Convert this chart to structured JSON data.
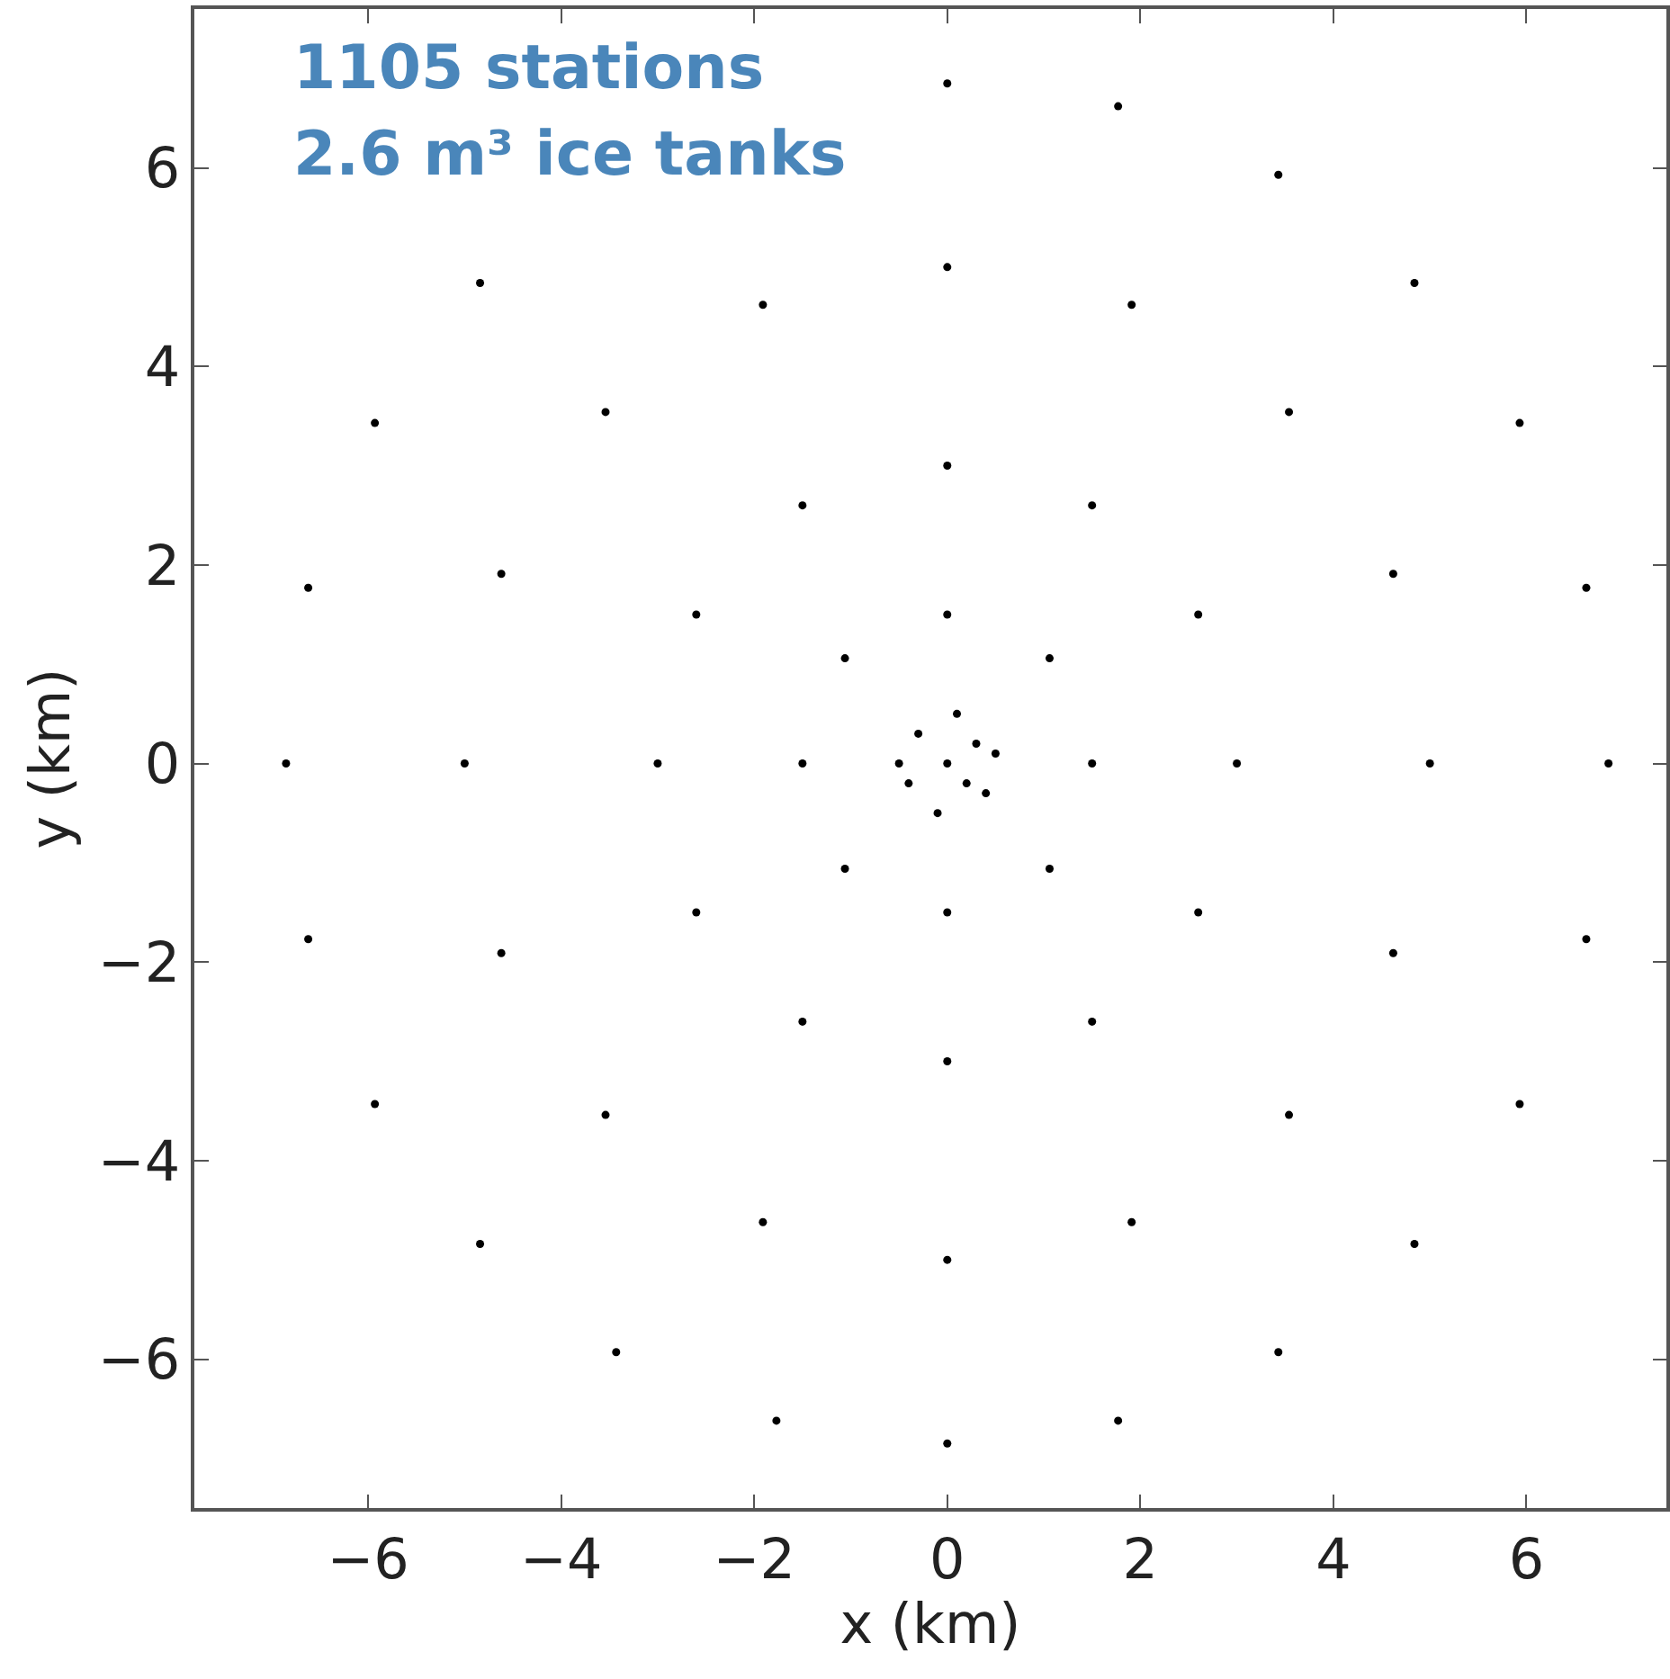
{
  "chart_data": {
    "type": "scatter",
    "xlabel": "x (km)",
    "ylabel": "y (km)",
    "annotations": [
      "1105 stations",
      "2.6 m³ ice tanks"
    ],
    "xlim": [
      -7.8,
      7.45
    ],
    "ylim": [
      -7.5,
      7.6
    ],
    "xticks": [
      -6,
      -4,
      -2,
      0,
      2,
      4,
      6
    ],
    "yticks": [
      -6,
      -4,
      -2,
      0,
      2,
      4,
      6
    ],
    "marker": "circle",
    "series": [
      {
        "color": "#000000",
        "x": [
          6.85,
          6.62,
          5.93,
          4.84,
          3.43,
          1.77,
          0,
          -4.84,
          -5.93,
          -6.62,
          -6.85,
          -6.62,
          -5.93,
          -4.84,
          -3.43,
          -1.77,
          0,
          1.77,
          3.43,
          4.84,
          5.93,
          6.62,
          5,
          4.62,
          3.54,
          1.91,
          0,
          -1.91,
          -3.54,
          -4.62,
          -5,
          -4.62,
          -3.54,
          -1.91,
          0,
          1.91,
          3.54,
          4.62,
          3,
          2.6,
          1.5,
          0,
          -1.5,
          -2.6,
          -3,
          -2.6,
          -1.5,
          0,
          1.5,
          2.6,
          1.5,
          1.06,
          0,
          -1.06,
          -1.5,
          -1.06,
          0,
          1.06,
          0,
          0.3,
          -0.3,
          0.4,
          -0.4,
          0.1,
          -0.1,
          0.5,
          -0.5,
          0.2
        ],
        "values": [
          0,
          1.77,
          3.43,
          4.84,
          5.93,
          6.62,
          6.85,
          4.84,
          3.43,
          1.77,
          0,
          -1.77,
          -3.43,
          -4.84,
          -5.93,
          -6.62,
          -6.85,
          -6.62,
          -5.93,
          -4.84,
          -3.43,
          -1.77,
          0,
          1.91,
          3.54,
          4.62,
          5,
          4.62,
          3.54,
          1.91,
          0,
          -1.91,
          -3.54,
          -4.62,
          -5,
          -4.62,
          -3.54,
          -1.91,
          0,
          1.5,
          2.6,
          3,
          2.6,
          1.5,
          0,
          -1.5,
          -2.6,
          -3,
          -2.6,
          -1.5,
          0,
          1.06,
          1.5,
          1.06,
          0,
          -1.06,
          -1.5,
          -1.06,
          0,
          0.2,
          0.3,
          -0.3,
          -0.2,
          0.5,
          -0.5,
          0.1,
          0,
          -0.2
        ]
      }
    ]
  }
}
